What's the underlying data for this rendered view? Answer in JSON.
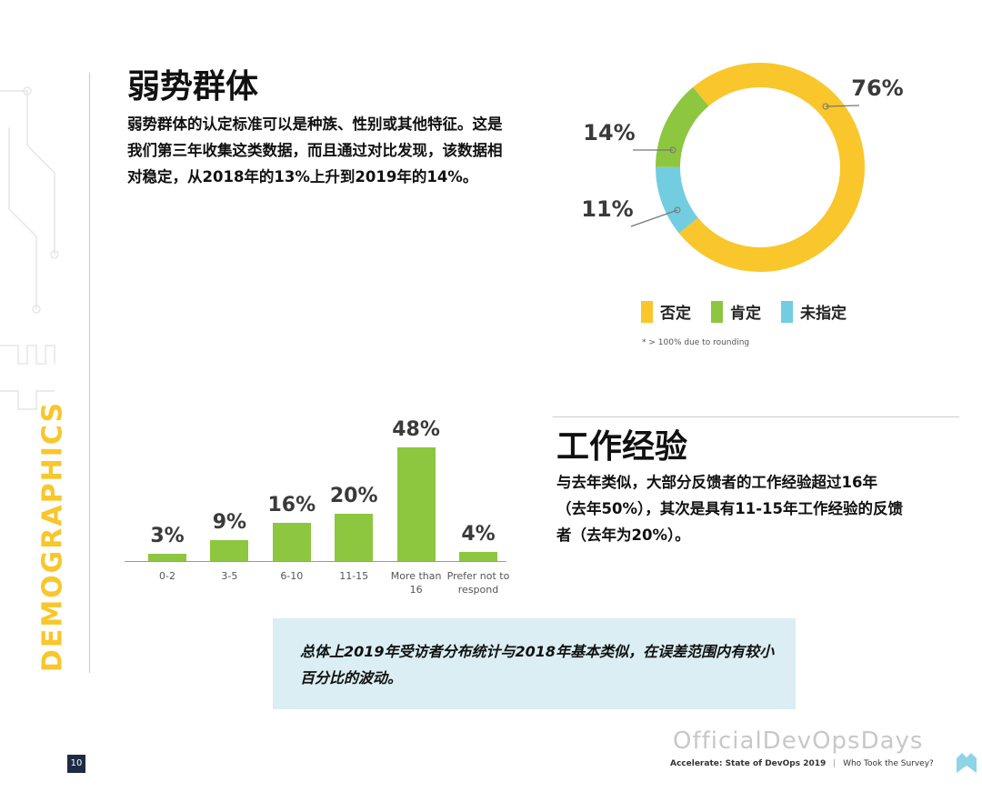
{
  "sidebar": "DEMOGRAPHICS",
  "section1": {
    "title": "弱势群体",
    "body": "弱势群体的认定标准可以是种族、性别或其他特征。这是我们第三年收集这类数据，而且通过对比发现，该数据相对稳定，从2018年的13%上升到2019年的14%。"
  },
  "section2": {
    "title": "工作经验",
    "body": "与去年类似，大部分反馈者的工作经验超过16年（去年50%），其次是具有11-15年工作经验的反馈者（去年为20%）。"
  },
  "chart_data": [
    {
      "type": "donut",
      "categories": [
        "否定",
        "肯定",
        "未指定"
      ],
      "values": [
        76,
        14,
        11
      ],
      "value_labels": [
        "76%",
        "14%",
        "11%"
      ],
      "colors": [
        "#f9c62b",
        "#8dc63f",
        "#72cde0"
      ],
      "note": "* > 100% due to rounding"
    },
    {
      "type": "bar",
      "categories": [
        "0-2",
        "3-5",
        "6-10",
        "11-15",
        "More than 16",
        "Prefer not to respond"
      ],
      "values": [
        3,
        9,
        16,
        20,
        48,
        4
      ],
      "value_labels": [
        "3%",
        "9%",
        "16%",
        "20%",
        "48%",
        "4%"
      ],
      "color": "#8dc63f"
    }
  ],
  "callout": "总体上2019年受访者分布统计与2018年基本类似，在误差范围内有较小百分比的波动。",
  "footer": {
    "page": "10",
    "report": "Accelerate: State of DevOps 2019",
    "section": "Who Took the Survey?"
  },
  "watermark": "OfficialDevOpsDays"
}
